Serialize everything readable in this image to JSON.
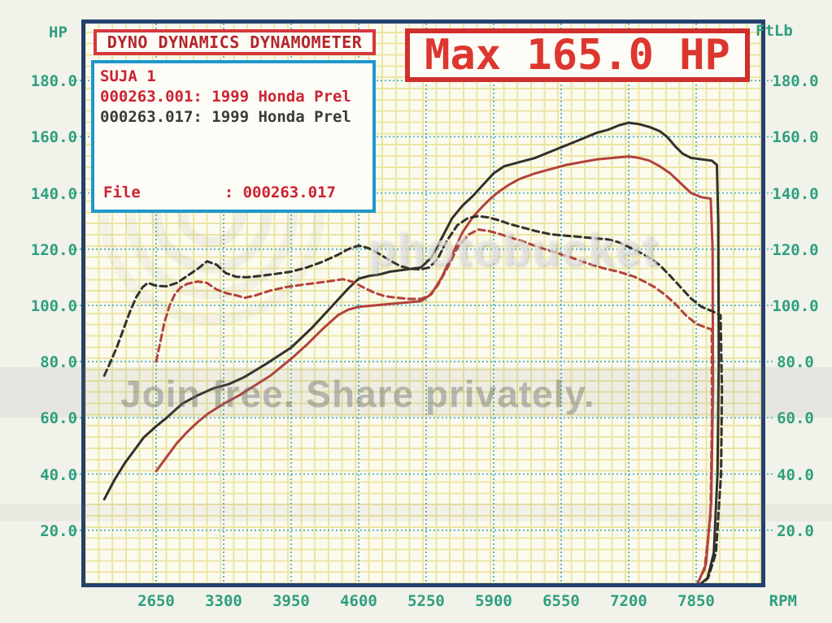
{
  "header": {
    "hp_label": "HP",
    "ftlb_label": "FtLb",
    "rpm_label": "RPM"
  },
  "title_box": {
    "text": "DYNO DYNAMICS DYNAMOMETER"
  },
  "legend_box": {
    "tune_name": "SUJA 1",
    "run1": "000263.001: 1999 Honda Prel",
    "run2": "000263.017: 1999 Honda Prel",
    "file_line": "File         : 000263.017"
  },
  "max_box": {
    "text": "Max 165.0 HP"
  },
  "watermark": {
    "band_text": "Join free. Share privately.",
    "brand_text": "photobucket"
  },
  "colors": {
    "teal": "#2f9f7f",
    "red_text": "#cc2231",
    "curve_black": "#33302c",
    "curve_red": "#b2423c",
    "border_navy": "#24406e",
    "grid_major": "#4fb0c6",
    "box_red": "#d5373d",
    "box_blue": "#2097cc"
  },
  "chart_data": {
    "type": "line",
    "title": "Max 165.0 HP",
    "xlabel": "RPM",
    "ylabel_left": "HP",
    "ylabel_right": "FtLb",
    "xlim": [
      1930,
      8470
    ],
    "ylim": [
      0,
      202
    ],
    "grid": true,
    "x_ticks": [
      {
        "rpm": 2650,
        "label": "2650"
      },
      {
        "rpm": 3300,
        "label": "3300"
      },
      {
        "rpm": 3950,
        "label": "3950"
      },
      {
        "rpm": 4600,
        "label": "4600"
      },
      {
        "rpm": 5250,
        "label": "5250"
      },
      {
        "rpm": 5900,
        "label": "5900"
      },
      {
        "rpm": 6550,
        "label": "6550"
      },
      {
        "rpm": 7200,
        "label": "7200"
      },
      {
        "rpm": 7850,
        "label": "7850"
      }
    ],
    "y_ticks": [
      {
        "v": 180,
        "label": "180.0"
      },
      {
        "v": 160,
        "label": "160.0"
      },
      {
        "v": 140,
        "label": "140.0"
      },
      {
        "v": 120,
        "label": "120.0"
      },
      {
        "v": 100,
        "label": "100.0"
      },
      {
        "v": 80,
        "label": "80.0"
      },
      {
        "v": 60,
        "label": "60.0"
      },
      {
        "v": 40,
        "label": "40.0"
      },
      {
        "v": 20,
        "label": "20.0"
      }
    ],
    "series": [
      {
        "name": "000263.017 HP (black, max 165.0)",
        "color": "#33302c",
        "style": "solid",
        "width": 3,
        "points": [
          [
            2150,
            31
          ],
          [
            2250,
            38
          ],
          [
            2350,
            44
          ],
          [
            2450,
            49
          ],
          [
            2530,
            53
          ],
          [
            2650,
            57
          ],
          [
            2750,
            60
          ],
          [
            2900,
            65
          ],
          [
            3050,
            68
          ],
          [
            3200,
            70.5
          ],
          [
            3350,
            72
          ],
          [
            3500,
            74.5
          ],
          [
            3700,
            79
          ],
          [
            3950,
            85
          ],
          [
            4150,
            92
          ],
          [
            4350,
            100
          ],
          [
            4500,
            106
          ],
          [
            4600,
            109.5
          ],
          [
            4700,
            110.5
          ],
          [
            4800,
            111
          ],
          [
            4900,
            112
          ],
          [
            5000,
            112.5
          ],
          [
            5100,
            113
          ],
          [
            5200,
            113.5
          ],
          [
            5300,
            117
          ],
          [
            5400,
            124
          ],
          [
            5500,
            131
          ],
          [
            5600,
            135.5
          ],
          [
            5700,
            139
          ],
          [
            5800,
            143
          ],
          [
            5900,
            147
          ],
          [
            6000,
            149.5
          ],
          [
            6100,
            150.5
          ],
          [
            6200,
            151.5
          ],
          [
            6300,
            152.5
          ],
          [
            6400,
            154
          ],
          [
            6500,
            155.5
          ],
          [
            6600,
            157
          ],
          [
            6700,
            158.5
          ],
          [
            6800,
            160
          ],
          [
            6900,
            161.5
          ],
          [
            7000,
            162.5
          ],
          [
            7100,
            164
          ],
          [
            7200,
            165
          ],
          [
            7300,
            164.5
          ],
          [
            7400,
            163.5
          ],
          [
            7500,
            162
          ],
          [
            7570,
            160
          ],
          [
            7650,
            156.5
          ],
          [
            7720,
            154
          ],
          [
            7800,
            152.5
          ],
          [
            7900,
            152
          ],
          [
            8000,
            151.5
          ],
          [
            8050,
            150
          ],
          [
            8062,
            130
          ],
          [
            8068,
            80
          ],
          [
            8055,
            40
          ],
          [
            8020,
            12
          ],
          [
            7960,
            3
          ],
          [
            7895,
            1
          ]
        ]
      },
      {
        "name": "000263.001 HP (red, max 153.0)",
        "color": "#b2423c",
        "style": "solid",
        "width": 3,
        "points": [
          [
            2650,
            41
          ],
          [
            2750,
            46
          ],
          [
            2850,
            51
          ],
          [
            2950,
            55
          ],
          [
            3050,
            58.5
          ],
          [
            3150,
            61.5
          ],
          [
            3300,
            65
          ],
          [
            3450,
            68
          ],
          [
            3600,
            71.5
          ],
          [
            3750,
            75
          ],
          [
            3950,
            81
          ],
          [
            4100,
            86
          ],
          [
            4250,
            91.5
          ],
          [
            4400,
            96.5
          ],
          [
            4500,
            98.5
          ],
          [
            4600,
            99.5
          ],
          [
            4750,
            100
          ],
          [
            4900,
            100.5
          ],
          [
            5050,
            101
          ],
          [
            5200,
            101.5
          ],
          [
            5300,
            104
          ],
          [
            5400,
            110
          ],
          [
            5500,
            118
          ],
          [
            5600,
            126
          ],
          [
            5700,
            131.5
          ],
          [
            5800,
            135.5
          ],
          [
            5870,
            138
          ],
          [
            5950,
            140.5
          ],
          [
            6050,
            143
          ],
          [
            6150,
            145
          ],
          [
            6300,
            147
          ],
          [
            6450,
            148.5
          ],
          [
            6600,
            150
          ],
          [
            6750,
            151
          ],
          [
            6900,
            152
          ],
          [
            7050,
            152.5
          ],
          [
            7200,
            153
          ],
          [
            7300,
            152.5
          ],
          [
            7400,
            151.5
          ],
          [
            7500,
            149.5
          ],
          [
            7600,
            147
          ],
          [
            7700,
            143.5
          ],
          [
            7800,
            140
          ],
          [
            7900,
            138.5
          ],
          [
            7990,
            138
          ],
          [
            8008,
            120
          ],
          [
            8012,
            70
          ],
          [
            7995,
            30
          ],
          [
            7945,
            8
          ],
          [
            7865,
            1
          ]
        ]
      },
      {
        "name": "000263.017 torque FtLb (black dashed)",
        "color": "#33302c",
        "style": "dashed",
        "width": 3,
        "points": [
          [
            2150,
            75
          ],
          [
            2200,
            79
          ],
          [
            2270,
            85
          ],
          [
            2340,
            92
          ],
          [
            2400,
            98
          ],
          [
            2460,
            103
          ],
          [
            2520,
            106.5
          ],
          [
            2570,
            108
          ],
          [
            2650,
            107
          ],
          [
            2750,
            106.8
          ],
          [
            2850,
            108
          ],
          [
            2950,
            110.5
          ],
          [
            3050,
            113
          ],
          [
            3140,
            115.7
          ],
          [
            3230,
            114.5
          ],
          [
            3320,
            111.5
          ],
          [
            3420,
            110.2
          ],
          [
            3520,
            110
          ],
          [
            3650,
            110.5
          ],
          [
            3800,
            111.2
          ],
          [
            3950,
            112
          ],
          [
            4100,
            113.5
          ],
          [
            4250,
            115.5
          ],
          [
            4400,
            118
          ],
          [
            4500,
            120
          ],
          [
            4600,
            121.3
          ],
          [
            4700,
            120.3
          ],
          [
            4800,
            118.3
          ],
          [
            4900,
            116
          ],
          [
            5000,
            114
          ],
          [
            5100,
            113
          ],
          [
            5200,
            112.8
          ],
          [
            5280,
            113.5
          ],
          [
            5360,
            116.5
          ],
          [
            5450,
            123
          ],
          [
            5550,
            128.5
          ],
          [
            5650,
            131
          ],
          [
            5750,
            131.8
          ],
          [
            5850,
            131.3
          ],
          [
            5950,
            130.3
          ],
          [
            6050,
            129
          ],
          [
            6150,
            128
          ],
          [
            6300,
            126.5
          ],
          [
            6450,
            125.3
          ],
          [
            6600,
            124.8
          ],
          [
            6750,
            124.3
          ],
          [
            6900,
            123.8
          ],
          [
            7000,
            123.5
          ],
          [
            7100,
            122.5
          ],
          [
            7200,
            120.8
          ],
          [
            7300,
            119
          ],
          [
            7400,
            117
          ],
          [
            7500,
            114.3
          ],
          [
            7600,
            110.5
          ],
          [
            7700,
            106.5
          ],
          [
            7800,
            102.5
          ],
          [
            7900,
            99.5
          ],
          [
            8000,
            98
          ],
          [
            8085,
            96.5
          ],
          [
            8098,
            70
          ],
          [
            8090,
            40
          ],
          [
            8040,
            12
          ],
          [
            7965,
            3
          ],
          [
            7905,
            1
          ]
        ]
      },
      {
        "name": "000263.001 torque FtLb (red dashed)",
        "color": "#b2423c",
        "style": "dashed",
        "width": 3,
        "points": [
          [
            2650,
            80
          ],
          [
            2690,
            87
          ],
          [
            2730,
            94
          ],
          [
            2780,
            100
          ],
          [
            2830,
            104
          ],
          [
            2890,
            106.5
          ],
          [
            2950,
            107.7
          ],
          [
            3050,
            108.5
          ],
          [
            3140,
            108
          ],
          [
            3230,
            105.7
          ],
          [
            3330,
            104.3
          ],
          [
            3430,
            103.5
          ],
          [
            3500,
            102.7
          ],
          [
            3600,
            103.5
          ],
          [
            3750,
            105.3
          ],
          [
            3900,
            106.5
          ],
          [
            4050,
            107.3
          ],
          [
            4200,
            108
          ],
          [
            4350,
            108.8
          ],
          [
            4450,
            109.3
          ],
          [
            4550,
            108.3
          ],
          [
            4650,
            106.3
          ],
          [
            4750,
            104.5
          ],
          [
            4850,
            103.3
          ],
          [
            4950,
            102.8
          ],
          [
            5080,
            102.3
          ],
          [
            5200,
            102.3
          ],
          [
            5280,
            103.5
          ],
          [
            5360,
            107
          ],
          [
            5450,
            113
          ],
          [
            5550,
            120.5
          ],
          [
            5650,
            125
          ],
          [
            5750,
            127
          ],
          [
            5850,
            126.5
          ],
          [
            5950,
            125.5
          ],
          [
            6050,
            124.3
          ],
          [
            6200,
            122.5
          ],
          [
            6350,
            120.5
          ],
          [
            6500,
            118.8
          ],
          [
            6650,
            117
          ],
          [
            6800,
            115
          ],
          [
            6950,
            113.3
          ],
          [
            7100,
            112
          ],
          [
            7250,
            110.3
          ],
          [
            7350,
            108.5
          ],
          [
            7450,
            106.5
          ],
          [
            7550,
            103.8
          ],
          [
            7650,
            100.5
          ],
          [
            7750,
            96.5
          ],
          [
            7850,
            93.5
          ],
          [
            7950,
            92
          ],
          [
            8000,
            91.5
          ],
          [
            8002,
            60
          ],
          [
            7988,
            25
          ],
          [
            7930,
            6
          ],
          [
            7860,
            1
          ]
        ]
      }
    ]
  }
}
